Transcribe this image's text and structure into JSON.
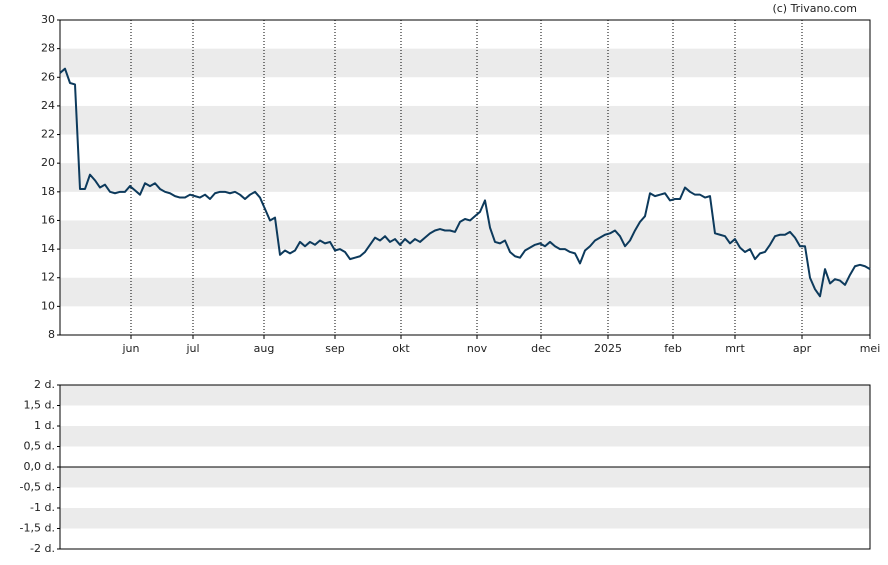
{
  "source": "(c) Trivano.com",
  "chart_data": [
    {
      "type": "line",
      "color": "#0d3a5c",
      "grid": true,
      "xlim": [
        0,
        162
      ],
      "xticks": [
        {
          "value": 14.2,
          "label": "jun"
        },
        {
          "value": 26.6,
          "label": "jul"
        },
        {
          "value": 40.8,
          "label": "aug"
        },
        {
          "value": 55,
          "label": "sep"
        },
        {
          "value": 68.2,
          "label": "okt"
        },
        {
          "value": 83.4,
          "label": "nov"
        },
        {
          "value": 96.2,
          "label": "dec"
        },
        {
          "value": 109.6,
          "label": "2025"
        },
        {
          "value": 122.6,
          "label": "feb"
        },
        {
          "value": 135,
          "label": "mrt"
        },
        {
          "value": 148.4,
          "label": "apr"
        },
        {
          "value": 162,
          "label": "mei"
        }
      ],
      "ylim": [
        8,
        30
      ],
      "yticks": [
        8,
        10,
        12,
        14,
        16,
        18,
        20,
        22,
        24,
        26,
        28,
        30
      ],
      "values": [
        26.3,
        26.6,
        25.6,
        25.5,
        18.2,
        18.2,
        19.2,
        18.8,
        18.3,
        18.5,
        18.0,
        17.9,
        18.0,
        18.0,
        18.4,
        18.1,
        17.8,
        18.6,
        18.4,
        18.6,
        18.2,
        18.0,
        17.9,
        17.7,
        17.6,
        17.6,
        17.8,
        17.7,
        17.6,
        17.8,
        17.5,
        17.9,
        18.0,
        18.0,
        17.9,
        18.0,
        17.8,
        17.5,
        17.8,
        18.0,
        17.6,
        16.8,
        16.0,
        16.2,
        13.6,
        13.9,
        13.7,
        13.9,
        14.5,
        14.2,
        14.5,
        14.3,
        14.6,
        14.4,
        14.5,
        13.9,
        14.0,
        13.8,
        13.3,
        13.4,
        13.5,
        13.8,
        14.3,
        14.8,
        14.6,
        14.9,
        14.5,
        14.7,
        14.3,
        14.7,
        14.4,
        14.7,
        14.5,
        14.8,
        15.1,
        15.3,
        15.4,
        15.3,
        15.3,
        15.2,
        15.9,
        16.1,
        16.0,
        16.3,
        16.6,
        17.4,
        15.5,
        14.5,
        14.4,
        14.6,
        13.8,
        13.5,
        13.4,
        13.9,
        14.1,
        14.3,
        14.4,
        14.2,
        14.5,
        14.2,
        14.0,
        14.0,
        13.8,
        13.7,
        13.0,
        13.9,
        14.2,
        14.6,
        14.8,
        15.0,
        15.1,
        15.3,
        14.9,
        14.2,
        14.6,
        15.3,
        15.9,
        16.3,
        17.9,
        17.7,
        17.8,
        17.9,
        17.4,
        17.5,
        17.5,
        18.3,
        18.0,
        17.8,
        17.8,
        17.6,
        17.7,
        15.1,
        15.0,
        14.9,
        14.4,
        14.7,
        14.1,
        13.8,
        14.0,
        13.3,
        13.7,
        13.8,
        14.3,
        14.9,
        15.0,
        15.0,
        15.2,
        14.8,
        14.2,
        14.2,
        12.0,
        11.2,
        10.7,
        12.6,
        11.6,
        11.9,
        11.8,
        11.5,
        12.2,
        12.8,
        12.9,
        12.8,
        12.6
      ]
    },
    {
      "type": "bar",
      "ylim": [
        -2,
        2
      ],
      "yticks": [
        {
          "value": -2,
          "label": "-2 d."
        },
        {
          "value": -1.5,
          "label": "-1,5 d."
        },
        {
          "value": -1,
          "label": "-1 d."
        },
        {
          "value": -0.5,
          "label": "-0,5 d."
        },
        {
          "value": 0,
          "label": "0,0 d."
        },
        {
          "value": 0.5,
          "label": "0,5 d."
        },
        {
          "value": 1,
          "label": "1 d."
        },
        {
          "value": 1.5,
          "label": "1,5 d."
        },
        {
          "value": 2,
          "label": "2 d."
        }
      ]
    }
  ]
}
